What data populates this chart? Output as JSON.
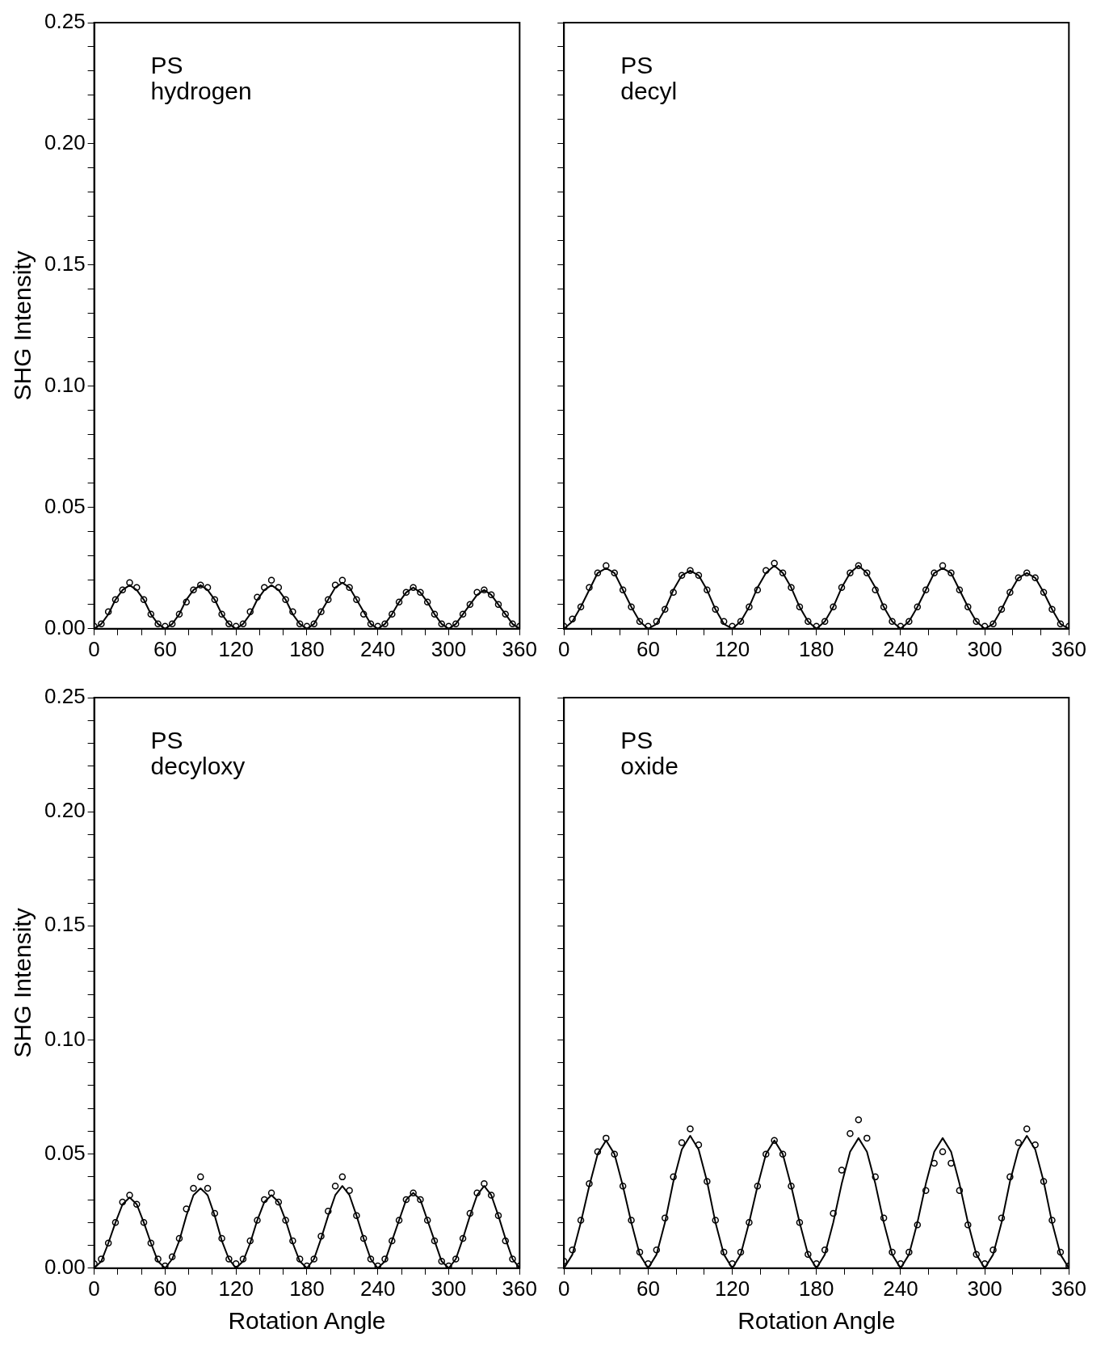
{
  "chart_data": [
    {
      "type": "scatter",
      "ylabel": "SHG Intensity",
      "annotations": [
        "PS",
        "hydrogen"
      ],
      "grid": false,
      "legend": false,
      "xlim": [
        0,
        360
      ],
      "ylim": [
        0,
        0.25
      ],
      "xticks": [
        0,
        {
          "value": 20,
          "label": null
        },
        {
          "value": 40,
          "label": null
        },
        60,
        {
          "value": 80,
          "label": null
        },
        {
          "value": 100,
          "label": null
        },
        120,
        {
          "value": 140,
          "label": null
        },
        {
          "value": 160,
          "label": null
        },
        180,
        {
          "value": 200,
          "label": null
        },
        {
          "value": 220,
          "label": null
        },
        240,
        {
          "value": 260,
          "label": null
        },
        {
          "value": 280,
          "label": null
        },
        300,
        {
          "value": 320,
          "label": null
        },
        {
          "value": 340,
          "label": null
        },
        360
      ],
      "yticks": [
        {
          "value": 0,
          "label": "0.00"
        },
        {
          "value": 0.01,
          "label": null
        },
        {
          "value": 0.02,
          "label": null
        },
        {
          "value": 0.03,
          "label": null
        },
        {
          "value": 0.04,
          "label": null
        },
        {
          "value": 0.05,
          "label": "0.05"
        },
        {
          "value": 0.06,
          "label": null
        },
        {
          "value": 0.07,
          "label": null
        },
        {
          "value": 0.08,
          "label": null
        },
        {
          "value": 0.09,
          "label": null
        },
        {
          "value": 0.1,
          "label": "0.10"
        },
        {
          "value": 0.11,
          "label": null
        },
        {
          "value": 0.12,
          "label": null
        },
        {
          "value": 0.13,
          "label": null
        },
        {
          "value": 0.14,
          "label": null
        },
        {
          "value": 0.15,
          "label": "0.15"
        },
        {
          "value": 0.16,
          "label": null
        },
        {
          "value": 0.17,
          "label": null
        },
        {
          "value": 0.18,
          "label": null
        },
        {
          "value": 0.19,
          "label": null
        },
        {
          "value": 0.2,
          "label": "0.20"
        },
        {
          "value": 0.21,
          "label": null
        },
        {
          "value": 0.22,
          "label": null
        },
        {
          "value": 0.23,
          "label": null
        },
        {
          "value": 0.24,
          "label": null
        },
        {
          "value": 0.25,
          "label": "0.25"
        }
      ],
      "x": [
        0,
        6,
        12,
        18,
        24,
        30,
        36,
        42,
        48,
        54,
        60,
        66,
        72,
        78,
        84,
        90,
        96,
        102,
        108,
        114,
        120,
        126,
        132,
        138,
        144,
        150,
        156,
        162,
        168,
        174,
        180,
        186,
        192,
        198,
        204,
        210,
        216,
        222,
        228,
        234,
        240,
        246,
        252,
        258,
        264,
        270,
        276,
        282,
        288,
        294,
        300,
        306,
        312,
        318,
        324,
        330,
        336,
        342,
        348,
        354,
        360
      ],
      "series": [
        {
          "marker": "circle",
          "color": "#000000",
          "values": [
            0.001,
            0.002,
            0.007,
            0.012,
            0.016,
            0.019,
            0.017,
            0.012,
            0.006,
            0.002,
            0.001,
            0.002,
            0.006,
            0.011,
            0.016,
            0.018,
            0.017,
            0.012,
            0.006,
            0.002,
            0.001,
            0.002,
            0.007,
            0.013,
            0.017,
            0.02,
            0.017,
            0.012,
            0.007,
            0.002,
            0.001,
            0.002,
            0.007,
            0.012,
            0.018,
            0.02,
            0.017,
            0.012,
            0.006,
            0.002,
            0.001,
            0.002,
            0.006,
            0.011,
            0.015,
            0.017,
            0.015,
            0.011,
            0.006,
            0.002,
            0.001,
            0.002,
            0.006,
            0.01,
            0.015,
            0.016,
            0.014,
            0.01,
            0.006,
            0.002,
            0.001
          ]
        },
        {
          "type": "line",
          "marker": "none",
          "color": "#000000",
          "values": [
            0,
            0.002,
            0.006,
            0.012,
            0.016,
            0.018,
            0.016,
            0.012,
            0.006,
            0.002,
            0,
            0.002,
            0.006,
            0.012,
            0.016,
            0.018,
            0.016,
            0.012,
            0.006,
            0.002,
            0,
            0.002,
            0.006,
            0.012,
            0.016,
            0.018,
            0.016,
            0.012,
            0.006,
            0.002,
            0,
            0.002,
            0.007,
            0.012,
            0.017,
            0.019,
            0.017,
            0.012,
            0.007,
            0.002,
            0,
            0.002,
            0.006,
            0.011,
            0.015,
            0.017,
            0.015,
            0.011,
            0.006,
            0.002,
            0,
            0.002,
            0.006,
            0.01,
            0.014,
            0.016,
            0.014,
            0.01,
            0.006,
            0.002,
            0
          ]
        }
      ]
    },
    {
      "type": "scatter",
      "tick_labels": "x",
      "annotations": [
        "PS",
        "decyl"
      ],
      "grid": false,
      "legend": false,
      "xlim": [
        0,
        360
      ],
      "ylim": [
        0,
        0.25
      ],
      "xticks": [
        0,
        {
          "value": 20,
          "label": null
        },
        {
          "value": 40,
          "label": null
        },
        60,
        {
          "value": 80,
          "label": null
        },
        {
          "value": 100,
          "label": null
        },
        120,
        {
          "value": 140,
          "label": null
        },
        {
          "value": 160,
          "label": null
        },
        180,
        {
          "value": 200,
          "label": null
        },
        {
          "value": 220,
          "label": null
        },
        240,
        {
          "value": 260,
          "label": null
        },
        {
          "value": 280,
          "label": null
        },
        300,
        {
          "value": 320,
          "label": null
        },
        {
          "value": 340,
          "label": null
        },
        360
      ],
      "yticks": [
        {
          "value": 0,
          "label": null
        },
        {
          "value": 0.01,
          "label": null
        },
        {
          "value": 0.02,
          "label": null
        },
        {
          "value": 0.03,
          "label": null
        },
        {
          "value": 0.04,
          "label": null
        },
        {
          "value": 0.05,
          "label": null
        },
        {
          "value": 0.06,
          "label": null
        },
        {
          "value": 0.07,
          "label": null
        },
        {
          "value": 0.08,
          "label": null
        },
        {
          "value": 0.09,
          "label": null
        },
        {
          "value": 0.1,
          "label": null
        },
        {
          "value": 0.11,
          "label": null
        },
        {
          "value": 0.12,
          "label": null
        },
        {
          "value": 0.13,
          "label": null
        },
        {
          "value": 0.14,
          "label": null
        },
        {
          "value": 0.15,
          "label": null
        },
        {
          "value": 0.16,
          "label": null
        },
        {
          "value": 0.17,
          "label": null
        },
        {
          "value": 0.18,
          "label": null
        },
        {
          "value": 0.19,
          "label": null
        },
        {
          "value": 0.2,
          "label": null
        },
        {
          "value": 0.21,
          "label": null
        },
        {
          "value": 0.22,
          "label": null
        },
        {
          "value": 0.23,
          "label": null
        },
        {
          "value": 0.24,
          "label": null
        },
        {
          "value": 0.25,
          "label": null
        }
      ],
      "x": [
        0,
        6,
        12,
        18,
        24,
        30,
        36,
        42,
        48,
        54,
        60,
        66,
        72,
        78,
        84,
        90,
        96,
        102,
        108,
        114,
        120,
        126,
        132,
        138,
        144,
        150,
        156,
        162,
        168,
        174,
        180,
        186,
        192,
        198,
        204,
        210,
        216,
        222,
        228,
        234,
        240,
        246,
        252,
        258,
        264,
        270,
        276,
        282,
        288,
        294,
        300,
        306,
        312,
        318,
        324,
        330,
        336,
        342,
        348,
        354,
        360
      ],
      "series": [
        {
          "marker": "circle",
          "color": "#000000",
          "values": [
            0.001,
            0.004,
            0.009,
            0.017,
            0.023,
            0.026,
            0.023,
            0.016,
            0.009,
            0.003,
            0.001,
            0.003,
            0.008,
            0.015,
            0.022,
            0.024,
            0.022,
            0.016,
            0.008,
            0.003,
            0.001,
            0.003,
            0.009,
            0.016,
            0.024,
            0.027,
            0.023,
            0.017,
            0.009,
            0.003,
            0.001,
            0.003,
            0.009,
            0.017,
            0.023,
            0.026,
            0.023,
            0.016,
            0.009,
            0.003,
            0.001,
            0.003,
            0.009,
            0.016,
            0.023,
            0.026,
            0.023,
            0.016,
            0.009,
            0.003,
            0.001,
            0.002,
            0.008,
            0.015,
            0.021,
            0.023,
            0.021,
            0.015,
            0.008,
            0.002,
            0.001
          ]
        },
        {
          "type": "line",
          "marker": "none",
          "color": "#000000",
          "values": [
            0,
            0.003,
            0.009,
            0.016,
            0.023,
            0.025,
            0.023,
            0.016,
            0.009,
            0.003,
            0,
            0.002,
            0.008,
            0.016,
            0.022,
            0.024,
            0.022,
            0.016,
            0.008,
            0.002,
            0,
            0.003,
            0.009,
            0.017,
            0.023,
            0.026,
            0.023,
            0.017,
            0.009,
            0.003,
            0,
            0.003,
            0.009,
            0.017,
            0.023,
            0.026,
            0.023,
            0.017,
            0.009,
            0.003,
            0,
            0.003,
            0.009,
            0.016,
            0.023,
            0.025,
            0.023,
            0.016,
            0.009,
            0.003,
            0,
            0.002,
            0.008,
            0.015,
            0.021,
            0.023,
            0.021,
            0.015,
            0.008,
            0.002,
            0
          ]
        }
      ]
    },
    {
      "type": "scatter",
      "ylabel": "SHG Intensity",
      "xlabel": "Rotation Angle",
      "annotations": [
        "PS",
        "decyloxy"
      ],
      "grid": false,
      "legend": false,
      "xlim": [
        0,
        360
      ],
      "ylim": [
        0,
        0.25
      ],
      "xticks": [
        0,
        {
          "value": 20,
          "label": null
        },
        {
          "value": 40,
          "label": null
        },
        60,
        {
          "value": 80,
          "label": null
        },
        {
          "value": 100,
          "label": null
        },
        120,
        {
          "value": 140,
          "label": null
        },
        {
          "value": 160,
          "label": null
        },
        180,
        {
          "value": 200,
          "label": null
        },
        {
          "value": 220,
          "label": null
        },
        240,
        {
          "value": 260,
          "label": null
        },
        {
          "value": 280,
          "label": null
        },
        300,
        {
          "value": 320,
          "label": null
        },
        {
          "value": 340,
          "label": null
        },
        360
      ],
      "yticks": [
        {
          "value": 0,
          "label": "0.00"
        },
        {
          "value": 0.01,
          "label": null
        },
        {
          "value": 0.02,
          "label": null
        },
        {
          "value": 0.03,
          "label": null
        },
        {
          "value": 0.04,
          "label": null
        },
        {
          "value": 0.05,
          "label": "0.05"
        },
        {
          "value": 0.06,
          "label": null
        },
        {
          "value": 0.07,
          "label": null
        },
        {
          "value": 0.08,
          "label": null
        },
        {
          "value": 0.09,
          "label": null
        },
        {
          "value": 0.1,
          "label": "0.10"
        },
        {
          "value": 0.11,
          "label": null
        },
        {
          "value": 0.12,
          "label": null
        },
        {
          "value": 0.13,
          "label": null
        },
        {
          "value": 0.14,
          "label": null
        },
        {
          "value": 0.15,
          "label": "0.15"
        },
        {
          "value": 0.16,
          "label": null
        },
        {
          "value": 0.17,
          "label": null
        },
        {
          "value": 0.18,
          "label": null
        },
        {
          "value": 0.19,
          "label": null
        },
        {
          "value": 0.2,
          "label": "0.20"
        },
        {
          "value": 0.21,
          "label": null
        },
        {
          "value": 0.22,
          "label": null
        },
        {
          "value": 0.23,
          "label": null
        },
        {
          "value": 0.24,
          "label": null
        },
        {
          "value": 0.25,
          "label": "0.25"
        }
      ],
      "x": [
        0,
        6,
        12,
        18,
        24,
        30,
        36,
        42,
        48,
        54,
        60,
        66,
        72,
        78,
        84,
        90,
        96,
        102,
        108,
        114,
        120,
        126,
        132,
        138,
        144,
        150,
        156,
        162,
        168,
        174,
        180,
        186,
        192,
        198,
        204,
        210,
        216,
        222,
        228,
        234,
        240,
        246,
        252,
        258,
        264,
        270,
        276,
        282,
        288,
        294,
        300,
        306,
        312,
        318,
        324,
        330,
        336,
        342,
        348,
        354,
        360
      ],
      "series": [
        {
          "marker": "circle",
          "color": "#000000",
          "values": [
            0.002,
            0.004,
            0.011,
            0.02,
            0.029,
            0.032,
            0.028,
            0.02,
            0.011,
            0.004,
            0.001,
            0.005,
            0.013,
            0.026,
            0.035,
            0.04,
            0.035,
            0.024,
            0.013,
            0.004,
            0.002,
            0.004,
            0.012,
            0.021,
            0.03,
            0.033,
            0.029,
            0.021,
            0.012,
            0.004,
            0.001,
            0.004,
            0.014,
            0.025,
            0.036,
            0.04,
            0.034,
            0.023,
            0.013,
            0.004,
            0.001,
            0.004,
            0.012,
            0.021,
            0.03,
            0.033,
            0.03,
            0.021,
            0.012,
            0.003,
            0.001,
            0.004,
            0.013,
            0.024,
            0.033,
            0.037,
            0.032,
            0.023,
            0.012,
            0.004,
            0.001
          ]
        },
        {
          "type": "line",
          "marker": "none",
          "color": "#000000",
          "values": [
            0,
            0.003,
            0.011,
            0.02,
            0.028,
            0.031,
            0.028,
            0.02,
            0.011,
            0.003,
            0,
            0.004,
            0.012,
            0.023,
            0.032,
            0.035,
            0.032,
            0.023,
            0.012,
            0.004,
            0,
            0.003,
            0.011,
            0.021,
            0.029,
            0.032,
            0.029,
            0.021,
            0.011,
            0.003,
            0,
            0.004,
            0.013,
            0.023,
            0.032,
            0.036,
            0.032,
            0.023,
            0.013,
            0.004,
            0,
            0.003,
            0.012,
            0.021,
            0.03,
            0.033,
            0.03,
            0.021,
            0.012,
            0.003,
            0,
            0.004,
            0.013,
            0.023,
            0.032,
            0.036,
            0.032,
            0.023,
            0.013,
            0.004,
            0
          ]
        }
      ]
    },
    {
      "type": "scatter",
      "xlabel": "Rotation Angle",
      "tick_labels": "x",
      "annotations": [
        "PS",
        "oxide"
      ],
      "grid": false,
      "legend": false,
      "xlim": [
        0,
        360
      ],
      "ylim": [
        0,
        0.25
      ],
      "xticks": [
        0,
        {
          "value": 20,
          "label": null
        },
        {
          "value": 40,
          "label": null
        },
        60,
        {
          "value": 80,
          "label": null
        },
        {
          "value": 100,
          "label": null
        },
        120,
        {
          "value": 140,
          "label": null
        },
        {
          "value": 160,
          "label": null
        },
        180,
        {
          "value": 200,
          "label": null
        },
        {
          "value": 220,
          "label": null
        },
        240,
        {
          "value": 260,
          "label": null
        },
        {
          "value": 280,
          "label": null
        },
        300,
        {
          "value": 320,
          "label": null
        },
        {
          "value": 340,
          "label": null
        },
        360
      ],
      "yticks": [
        {
          "value": 0,
          "label": null
        },
        {
          "value": 0.01,
          "label": null
        },
        {
          "value": 0.02,
          "label": null
        },
        {
          "value": 0.03,
          "label": null
        },
        {
          "value": 0.04,
          "label": null
        },
        {
          "value": 0.05,
          "label": null
        },
        {
          "value": 0.06,
          "label": null
        },
        {
          "value": 0.07,
          "label": null
        },
        {
          "value": 0.08,
          "label": null
        },
        {
          "value": 0.09,
          "label": null
        },
        {
          "value": 0.1,
          "label": null
        },
        {
          "value": 0.11,
          "label": null
        },
        {
          "value": 0.12,
          "label": null
        },
        {
          "value": 0.13,
          "label": null
        },
        {
          "value": 0.14,
          "label": null
        },
        {
          "value": 0.15,
          "label": null
        },
        {
          "value": 0.16,
          "label": null
        },
        {
          "value": 0.17,
          "label": null
        },
        {
          "value": 0.18,
          "label": null
        },
        {
          "value": 0.19,
          "label": null
        },
        {
          "value": 0.2,
          "label": null
        },
        {
          "value": 0.21,
          "label": null
        },
        {
          "value": 0.22,
          "label": null
        },
        {
          "value": 0.23,
          "label": null
        },
        {
          "value": 0.24,
          "label": null
        },
        {
          "value": 0.25,
          "label": null
        }
      ],
      "x": [
        0,
        6,
        12,
        18,
        24,
        30,
        36,
        42,
        48,
        54,
        60,
        66,
        72,
        78,
        84,
        90,
        96,
        102,
        108,
        114,
        120,
        126,
        132,
        138,
        144,
        150,
        156,
        162,
        168,
        174,
        180,
        186,
        192,
        198,
        204,
        210,
        216,
        222,
        228,
        234,
        240,
        246,
        252,
        258,
        264,
        270,
        276,
        282,
        288,
        294,
        300,
        306,
        312,
        318,
        324,
        330,
        336,
        342,
        348,
        354,
        360
      ],
      "series": [
        {
          "marker": "circle",
          "color": "#000000",
          "values": [
            0.003,
            0.008,
            0.021,
            0.037,
            0.051,
            0.057,
            0.05,
            0.036,
            0.021,
            0.007,
            0.002,
            0.008,
            0.022,
            0.04,
            0.055,
            0.061,
            0.054,
            0.038,
            0.021,
            0.007,
            0.002,
            0.007,
            0.02,
            0.036,
            0.05,
            0.056,
            0.05,
            0.036,
            0.02,
            0.006,
            0.002,
            0.008,
            0.024,
            0.043,
            0.059,
            0.065,
            0.057,
            0.04,
            0.022,
            0.007,
            0.002,
            0.007,
            0.019,
            0.034,
            0.046,
            0.051,
            0.046,
            0.034,
            0.019,
            0.006,
            0.002,
            0.008,
            0.022,
            0.04,
            0.055,
            0.061,
            0.054,
            0.038,
            0.021,
            0.007,
            0.001
          ]
        },
        {
          "type": "line",
          "marker": "none",
          "color": "#000000",
          "values": [
            0,
            0.006,
            0.02,
            0.036,
            0.05,
            0.056,
            0.05,
            0.036,
            0.02,
            0.006,
            0,
            0.006,
            0.02,
            0.038,
            0.052,
            0.058,
            0.052,
            0.038,
            0.02,
            0.006,
            0,
            0.006,
            0.02,
            0.036,
            0.05,
            0.056,
            0.05,
            0.036,
            0.02,
            0.006,
            0,
            0.006,
            0.02,
            0.037,
            0.051,
            0.057,
            0.051,
            0.037,
            0.02,
            0.006,
            0,
            0.006,
            0.02,
            0.037,
            0.051,
            0.057,
            0.051,
            0.037,
            0.02,
            0.006,
            0,
            0.006,
            0.02,
            0.038,
            0.052,
            0.058,
            0.052,
            0.038,
            0.02,
            0.006,
            0
          ]
        }
      ]
    }
  ]
}
